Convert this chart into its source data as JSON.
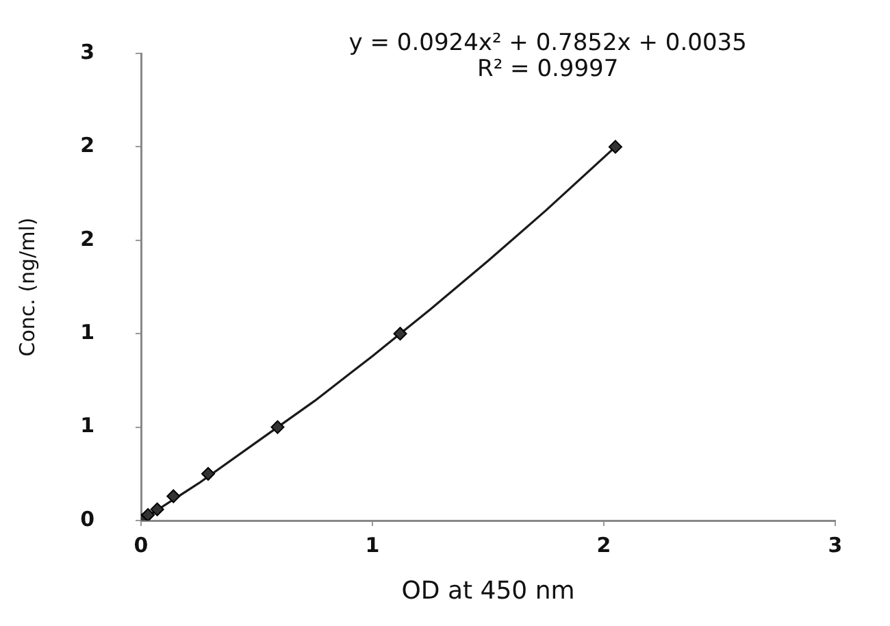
{
  "chart_data": {
    "type": "scatter",
    "xlabel": "OD at 450 nm",
    "ylabel": "Conc. (ng/ml)",
    "xlim": [
      0,
      3
    ],
    "xticks": [
      0,
      1,
      2,
      3
    ],
    "ylim": [
      0,
      2.5
    ],
    "yticks": [
      0,
      {
        "value": 0.5,
        "label": "1"
      },
      {
        "value": 1,
        "label": "1"
      },
      {
        "value": 1.5,
        "label": "2"
      },
      {
        "value": 2,
        "label": "2"
      },
      {
        "value": 2.5,
        "label": "3"
      }
    ],
    "grid": false,
    "legend": false,
    "annotations": [
      "y = 0.0924x² + 0.7852x + 0.0035",
      "R² = 0.9997"
    ],
    "series": [
      {
        "type": "line",
        "color": "#1a1a1a",
        "marker": "none",
        "line_style": "solid",
        "x": [
          0,
          0.25,
          0.5,
          0.75,
          1,
          1.25,
          1.5,
          1.75,
          2.05
        ],
        "values": [
          0,
          0.2,
          0.42,
          0.64,
          0.88,
          1.13,
          1.39,
          1.66,
          2.0
        ]
      },
      {
        "type": "scatter",
        "color": "#333333",
        "marker": "diamond",
        "x": [
          0,
          0.03,
          0.07,
          0.14,
          0.29,
          0.59,
          1.12,
          2.05
        ],
        "values": [
          0,
          0.03,
          0.06,
          0.13,
          0.25,
          0.5,
          1,
          2
        ]
      }
    ]
  }
}
